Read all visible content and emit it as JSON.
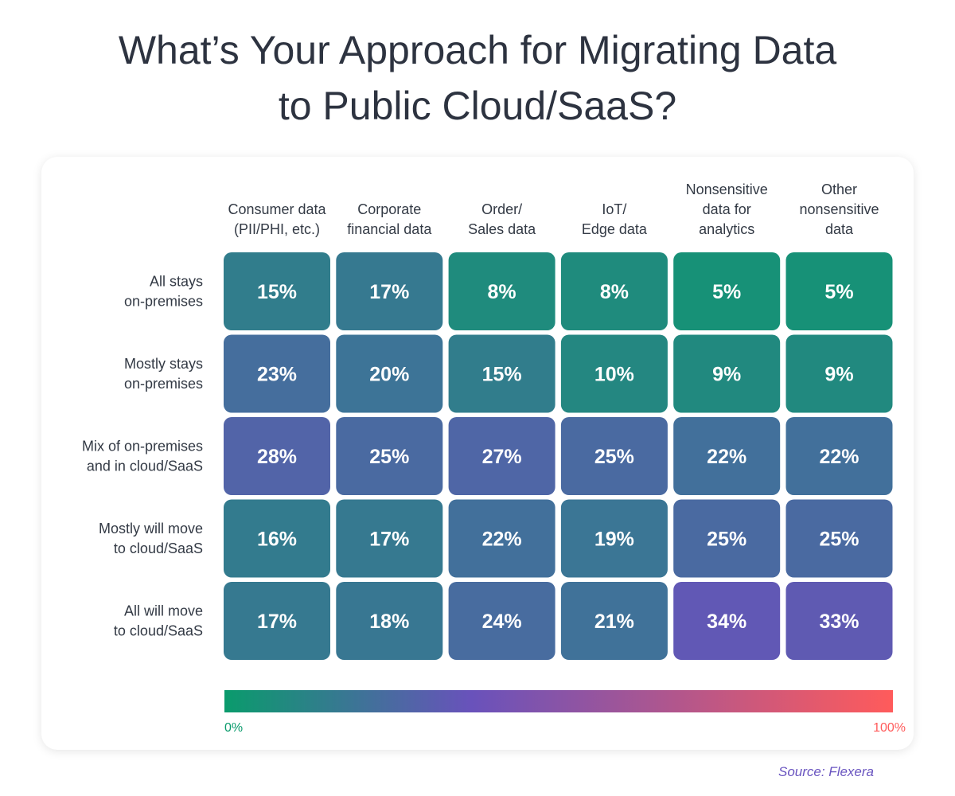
{
  "title": "What’s Your Approach for Migrating Data to Public Cloud/SaaS?",
  "title_lines": [
    "What’s Your Approach for Migrating Data",
    "to Public Cloud/SaaS?"
  ],
  "source": "Source: Flexera",
  "chart_data": {
    "type": "heatmap",
    "title": "What’s Your Approach for Migrating Data to Public Cloud/SaaS?",
    "columns": [
      [
        "Consumer data",
        "(PII/PHI, etc.)"
      ],
      [
        "Corporate",
        "financial data"
      ],
      [
        "Order/",
        "Sales data"
      ],
      [
        "IoT/",
        "Edge data"
      ],
      [
        "Nonsensitive",
        "data for",
        "analytics"
      ],
      [
        "Other",
        "nonsensitive",
        "data"
      ]
    ],
    "rows": [
      [
        "All stays",
        "on-premises"
      ],
      [
        "Mostly stays",
        "on-premises"
      ],
      [
        "Mix of on-premises",
        "and in cloud/SaaS"
      ],
      [
        "Mostly will move",
        "to cloud/SaaS"
      ],
      [
        "All will move",
        "to cloud/SaaS"
      ]
    ],
    "values": [
      [
        15,
        17,
        8,
        8,
        5,
        5
      ],
      [
        23,
        20,
        15,
        10,
        9,
        9
      ],
      [
        28,
        25,
        27,
        25,
        22,
        22
      ],
      [
        16,
        17,
        22,
        19,
        25,
        25
      ],
      [
        17,
        18,
        24,
        21,
        34,
        33
      ]
    ],
    "unit": "%",
    "color_scale": {
      "min": 0,
      "max": 100,
      "min_label": "0%",
      "max_label": "100%",
      "colors": [
        "#0a9b6c",
        "#6952bb",
        "#ff5b5b"
      ]
    },
    "legend_placement": "bottom"
  }
}
